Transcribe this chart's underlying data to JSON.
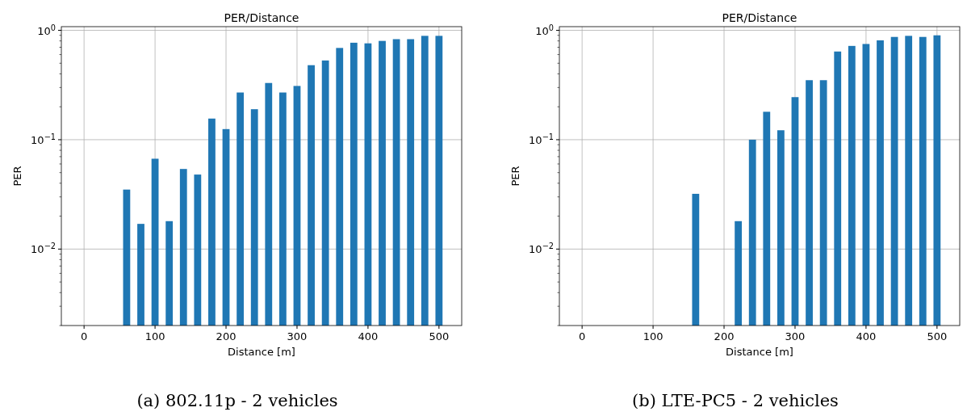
{
  "chart_data": [
    {
      "type": "bar",
      "title": "PER/Distance",
      "xlabel": "Distance [m]",
      "ylabel": "PER",
      "annotations": [
        "(a) 802.11p - 2 vehicles"
      ],
      "x": [
        60,
        80,
        100,
        120,
        140,
        160,
        180,
        200,
        220,
        240,
        260,
        280,
        300,
        320,
        340,
        360,
        380,
        400,
        420,
        440,
        460,
        480,
        500
      ],
      "values": [
        0.035,
        0.017,
        0.067,
        0.018,
        0.054,
        0.048,
        0.156,
        0.125,
        0.27,
        0.19,
        0.33,
        0.27,
        0.31,
        0.48,
        0.53,
        0.69,
        0.77,
        0.76,
        0.8,
        0.83,
        0.83,
        0.89,
        0.89
      ],
      "color": "#1f77b4",
      "log": "y",
      "grid": true,
      "xlim": [
        -32,
        532
      ],
      "xticks": [
        0,
        100,
        200,
        300,
        400,
        500
      ],
      "ylim": [
        0.002,
        1.08
      ],
      "yticks": [
        {
          "value": 0.01,
          "label": "10$^{−2}$"
        },
        {
          "value": 0.1,
          "label": "10$^{−1}$"
        },
        {
          "value": 1,
          "label": "10$^{0}$"
        }
      ]
    },
    {
      "type": "bar",
      "title": "PER/Distance",
      "xlabel": "Distance [m]",
      "ylabel": "PER",
      "annotations": [
        "(b) LTE-PC5 - 2 vehicles"
      ],
      "x": [
        160,
        220,
        240,
        260,
        280,
        300,
        320,
        340,
        360,
        380,
        400,
        420,
        440,
        460,
        480,
        500
      ],
      "values": [
        0.032,
        0.018,
        0.1,
        0.18,
        0.122,
        0.245,
        0.35,
        0.35,
        0.64,
        0.72,
        0.75,
        0.81,
        0.87,
        0.89,
        0.87,
        0.9
      ],
      "color": "#1f77b4",
      "log": "y",
      "grid": true,
      "xlim": [
        -32,
        532
      ],
      "xticks": [
        0,
        100,
        200,
        300,
        400,
        500
      ],
      "ylim": [
        0.002,
        1.08
      ],
      "yticks": [
        {
          "value": 0.01,
          "label": "10$^{−2}$"
        },
        {
          "value": 0.1,
          "label": "10$^{−1}$"
        },
        {
          "value": 1,
          "label": "10$^{0}$"
        }
      ]
    }
  ]
}
